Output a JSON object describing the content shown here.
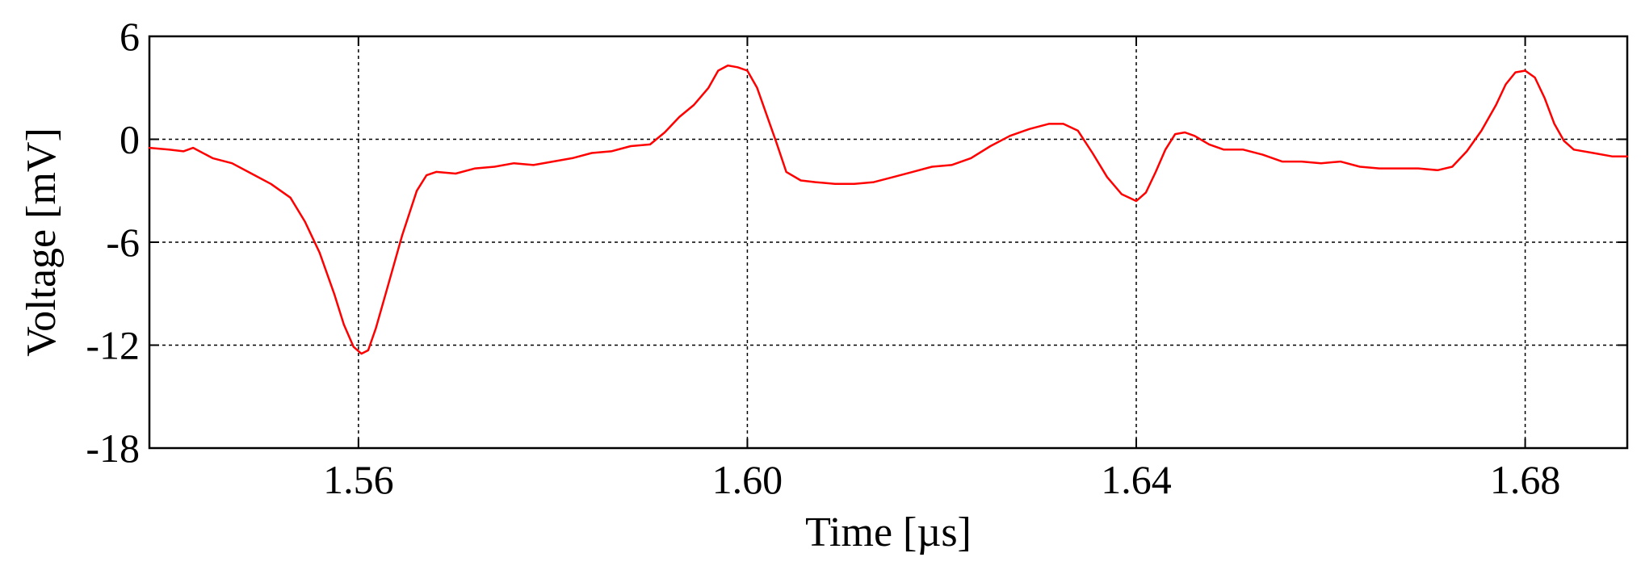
{
  "chart_data": {
    "type": "line",
    "title": "",
    "xlabel": "Time [µs]",
    "ylabel": "Voltage [mV]",
    "xlim": [
      1.5385,
      1.6905
    ],
    "ylim": [
      -18,
      6
    ],
    "x_ticks": [
      1.56,
      1.6,
      1.64,
      1.68
    ],
    "x_tick_labels": [
      "1.56",
      "1.60",
      "1.64",
      "1.68"
    ],
    "y_ticks": [
      6,
      0,
      -6,
      -12,
      -18
    ],
    "y_tick_labels": [
      "6",
      "0",
      "-6",
      "-12",
      "-18"
    ],
    "grid": true,
    "colors": {
      "series": "#ff0000",
      "grid": "#000000",
      "axes": "#000000"
    },
    "series": [
      {
        "x": [
          1.5385,
          1.5405,
          1.542,
          1.543,
          1.545,
          1.547,
          1.549,
          1.551,
          1.553,
          1.5545,
          1.556,
          1.5575,
          1.5585,
          1.5595,
          1.5603,
          1.561,
          1.5618,
          1.563,
          1.5645,
          1.566,
          1.567,
          1.568,
          1.57,
          1.572,
          1.574,
          1.576,
          1.578,
          1.58,
          1.582,
          1.584,
          1.586,
          1.588,
          1.59,
          1.5915,
          1.593,
          1.5945,
          1.596,
          1.597,
          1.598,
          1.599,
          1.6,
          1.601,
          1.602,
          1.603,
          1.604,
          1.6055,
          1.607,
          1.609,
          1.611,
          1.613,
          1.615,
          1.617,
          1.619,
          1.621,
          1.623,
          1.625,
          1.627,
          1.629,
          1.631,
          1.6325,
          1.634,
          1.6355,
          1.637,
          1.6385,
          1.64,
          1.641,
          1.642,
          1.643,
          1.644,
          1.645,
          1.646,
          1.6475,
          1.649,
          1.651,
          1.653,
          1.655,
          1.657,
          1.659,
          1.661,
          1.663,
          1.665,
          1.667,
          1.669,
          1.671,
          1.6725,
          1.674,
          1.6755,
          1.677,
          1.678,
          1.679,
          1.68,
          1.681,
          1.682,
          1.683,
          1.684,
          1.685,
          1.687,
          1.689,
          1.6905
        ],
        "y": [
          -0.5,
          -0.6,
          -0.7,
          -0.5,
          -1.1,
          -1.4,
          -2.0,
          -2.6,
          -3.4,
          -4.8,
          -6.6,
          -9.0,
          -10.8,
          -12.1,
          -12.5,
          -12.3,
          -11.0,
          -8.6,
          -5.6,
          -3.0,
          -2.1,
          -1.9,
          -2.0,
          -1.7,
          -1.6,
          -1.4,
          -1.5,
          -1.3,
          -1.1,
          -0.8,
          -0.7,
          -0.4,
          -0.3,
          0.4,
          1.3,
          2.0,
          3.0,
          4.0,
          4.3,
          4.2,
          4.0,
          3.0,
          1.4,
          -0.2,
          -1.9,
          -2.4,
          -2.5,
          -2.6,
          -2.6,
          -2.5,
          -2.2,
          -1.9,
          -1.6,
          -1.5,
          -1.1,
          -0.4,
          0.2,
          0.6,
          0.9,
          0.9,
          0.5,
          -0.8,
          -2.2,
          -3.2,
          -3.6,
          -3.1,
          -1.9,
          -0.6,
          0.3,
          0.4,
          0.2,
          -0.3,
          -0.6,
          -0.6,
          -0.9,
          -1.3,
          -1.3,
          -1.4,
          -1.3,
          -1.6,
          -1.7,
          -1.7,
          -1.7,
          -1.8,
          -1.6,
          -0.7,
          0.5,
          2.0,
          3.2,
          3.9,
          4.0,
          3.6,
          2.4,
          0.9,
          -0.1,
          -0.6,
          -0.8,
          -1.0,
          -1.0
        ]
      }
    ]
  }
}
